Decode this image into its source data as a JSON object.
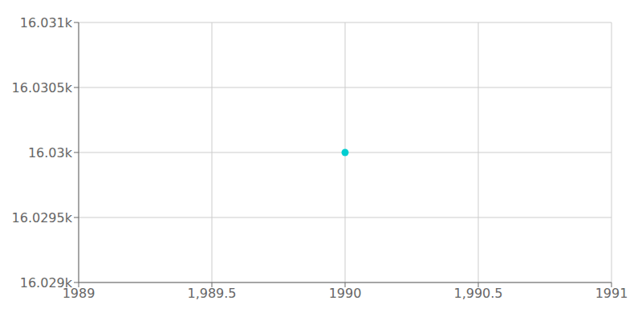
{
  "chart_data": {
    "type": "scatter",
    "x": [
      1990
    ],
    "values": [
      16030
    ],
    "color": "#00CED1",
    "xlim": [
      1989,
      1991
    ],
    "ylim": [
      16029,
      16031
    ],
    "xticks": [
      1989,
      {
        "value": 1989.5,
        "label": "1,989.5"
      },
      1990,
      {
        "value": 1990.5,
        "label": "1,990.5"
      },
      1991
    ],
    "yticks": [
      {
        "value": 16029,
        "label": "16.029k"
      },
      {
        "value": 16029.5,
        "label": "16.0295k"
      },
      {
        "value": 16030,
        "label": "16.03k"
      },
      {
        "value": 16030.5,
        "label": "16.0305k"
      },
      {
        "value": 16031,
        "label": "16.031k"
      }
    ],
    "grid": true
  }
}
